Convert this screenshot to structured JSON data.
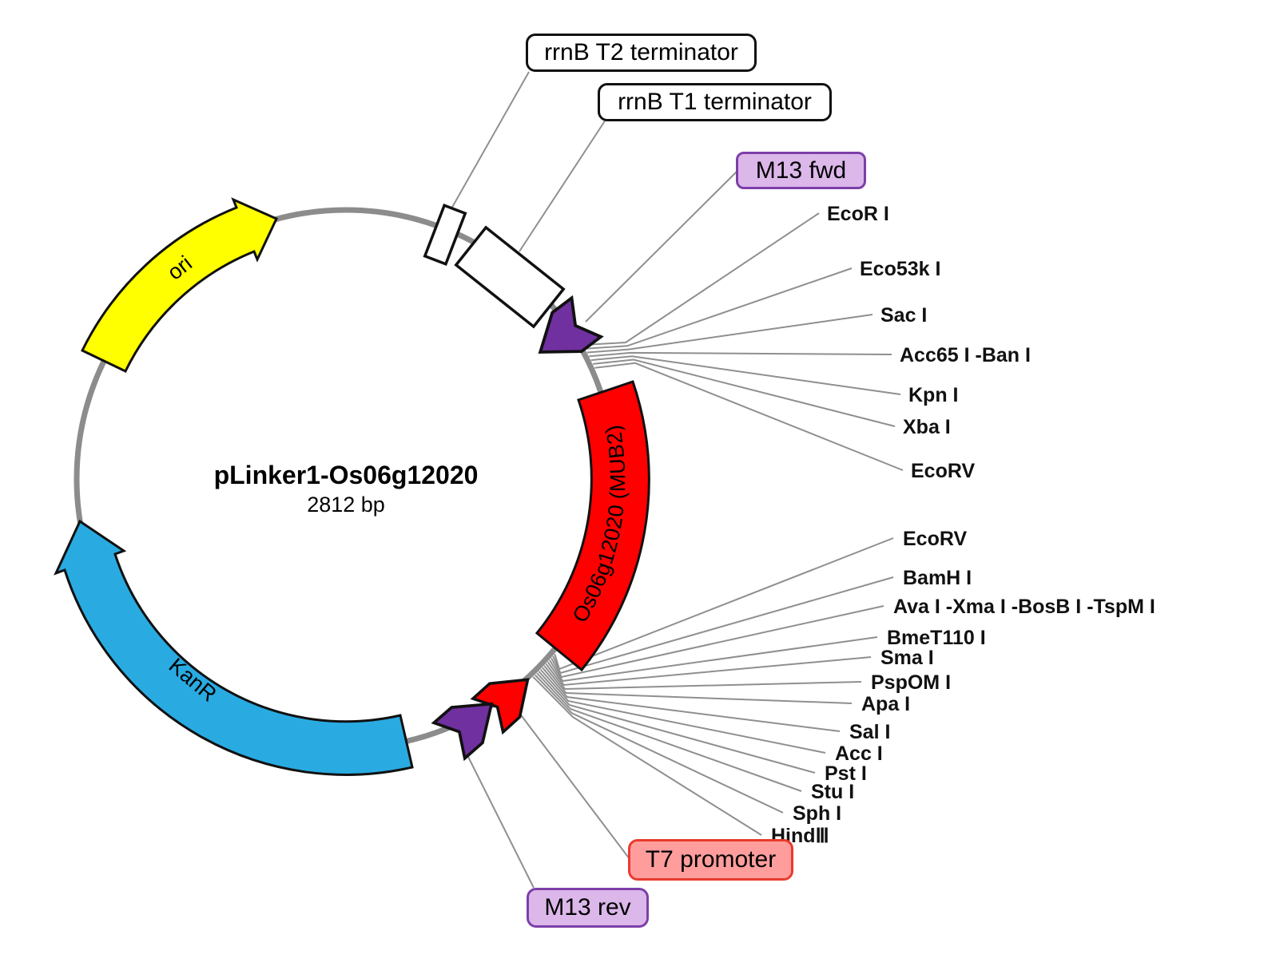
{
  "title": {
    "name": "pLinker1-Os06g12020",
    "size": "2812 bp"
  },
  "features": {
    "ori": "ori",
    "kanr": "KanR",
    "insert": "Os06g12020 (MUB2)",
    "rrnb_t2": "rrnB T2 terminator",
    "rrnb_t1": "rrnB T1 terminator",
    "m13_fwd": "M13 fwd",
    "m13_rev": "M13 rev",
    "t7_promoter": "T7 promoter"
  },
  "sites_top": [
    "EcoR I",
    "Eco53k I",
    "Sac I",
    "Acc65 I -Ban I",
    "Kpn I",
    "Xba I",
    "EcoRV"
  ],
  "sites_bottom": [
    "EcoRV",
    "BamH I",
    "Ava I -Xma I -BosB I -TspM I",
    "BmeT110 I",
    "Sma I",
    "PspOM I",
    "Apa I",
    "Sal I",
    "Acc I",
    "Pst I",
    "Stu I",
    "Sph I",
    "HindⅢ"
  ],
  "colors": {
    "backbone": "#8c8c8c",
    "leader_line": "#8f8f8f",
    "ori": "#ffff00",
    "kanr": "#29abe2",
    "insert": "#ff0000",
    "primer_arrow": "#7030a0",
    "t7_arrow": "#ff0000",
    "terminator_fill": "#ffffff",
    "t7_box_fill": "#ff9d9d",
    "t7_box_border": "#e93b2e",
    "m13_box_fill": "#dcb7ea",
    "m13_box_border": "#7d3fa8"
  }
}
